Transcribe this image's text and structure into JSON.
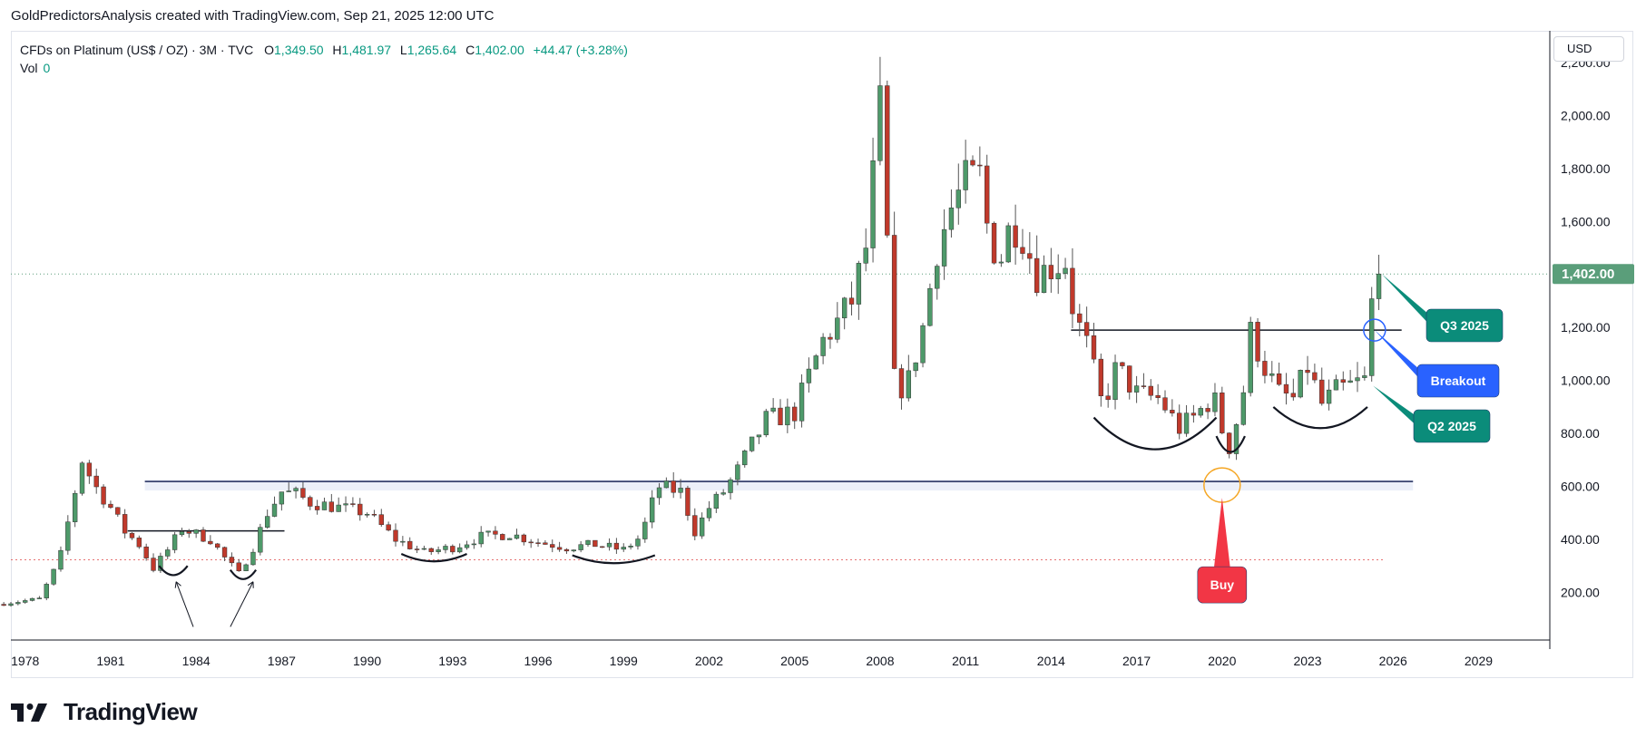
{
  "header": {
    "attribution": "GoldPredictorsAnalysis created with TradingView.com, Sep 21, 2025 12:00 UTC"
  },
  "legend": {
    "symbol": "CFDs on Platinum (US$ / OZ) · 3M · TVC",
    "open_label": "O",
    "open": "1,349.50",
    "high_label": "H",
    "high": "1,481.97",
    "low_label": "L",
    "low": "1,265.64",
    "close_label": "C",
    "close": "1,402.00",
    "change": "+44.47 (+3.28%)",
    "volume_label": "Vol",
    "volume": "0"
  },
  "currency": "USD",
  "price_badge": "1,402.00",
  "brand": {
    "name": "TradingView",
    "logo_icon": "tradingview-logo-icon"
  },
  "colors": {
    "up": "#4e9a6a",
    "down": "#c0392b",
    "grid": "#f0f3fa",
    "support": "#1e2a5a",
    "breakout_blue": "#2962ff",
    "buy_red": "#f23645",
    "teal": "#0b8c7a",
    "price_teal": "#5a9e7a"
  },
  "chart_data": {
    "type": "candlestick",
    "title": "CFDs on Platinum (US$ / OZ) · 3M · TVC",
    "ylim": [
      20,
      2320
    ],
    "y_ticks": [
      200,
      400,
      600,
      800,
      1000,
      1200,
      1400,
      1600,
      1800,
      2000,
      2200
    ],
    "y_tick_labels": [
      "200.00",
      "400.00",
      "600.00",
      "800.00",
      "1,000.00",
      "1,200.00",
      "1,400.00",
      "1,600.00",
      "1,800.00",
      "2,000.00",
      "2,200.00"
    ],
    "x_ticks": [
      1978,
      1981,
      1984,
      1987,
      1990,
      1993,
      1996,
      1999,
      2002,
      2005,
      2008,
      2011,
      2014,
      2017,
      2020,
      2023,
      2026,
      2029
    ],
    "xlim": [
      1977.5,
      2031.5
    ],
    "last_price": 1402,
    "anchors": [
      [
        1977.0,
        155
      ],
      [
        1978.5,
        175
      ],
      [
        1979.2,
        320
      ],
      [
        1980.0,
        700
      ],
      [
        1980.4,
        610
      ],
      [
        1981.0,
        520
      ],
      [
        1981.5,
        430
      ],
      [
        1982.0,
        380
      ],
      [
        1982.5,
        290
      ],
      [
        1983.0,
        360
      ],
      [
        1983.5,
        440
      ],
      [
        1984.0,
        420
      ],
      [
        1984.5,
        400
      ],
      [
        1985.0,
        330
      ],
      [
        1985.5,
        270
      ],
      [
        1986.0,
        370
      ],
      [
        1986.5,
        500
      ],
      [
        1987.0,
        580
      ],
      [
        1987.5,
        570
      ],
      [
        1988.0,
        540
      ],
      [
        1989.0,
        520
      ],
      [
        1990.0,
        500
      ],
      [
        1991.0,
        400
      ],
      [
        1992.0,
        350
      ],
      [
        1993.0,
        370
      ],
      [
        1994.0,
        410
      ],
      [
        1995.0,
        420
      ],
      [
        1996.0,
        390
      ],
      [
        1997.0,
        370
      ],
      [
        1998.0,
        380
      ],
      [
        1999.0,
        360
      ],
      [
        1999.6,
        410
      ],
      [
        2000.2,
        600
      ],
      [
        2001.0,
        580
      ],
      [
        2001.5,
        430
      ],
      [
        2002.0,
        520
      ],
      [
        2002.5,
        580
      ],
      [
        2003.0,
        660
      ],
      [
        2004.0,
        850
      ],
      [
        2005.0,
        880
      ],
      [
        2006.0,
        1150
      ],
      [
        2006.5,
        1220
      ],
      [
        2007.0,
        1300
      ],
      [
        2007.5,
        1500
      ],
      [
        2008.0,
        2030
      ],
      [
        2008.5,
        1000
      ],
      [
        2008.9,
        960
      ],
      [
        2009.5,
        1200
      ],
      [
        2010.0,
        1500
      ],
      [
        2010.5,
        1650
      ],
      [
        2011.0,
        1750
      ],
      [
        2011.5,
        1770
      ],
      [
        2011.8,
        1550
      ],
      [
        2012.2,
        1450
      ],
      [
        2012.6,
        1600
      ],
      [
        2013.0,
        1550
      ],
      [
        2013.5,
        1400
      ],
      [
        2014.0,
        1430
      ],
      [
        2014.5,
        1450
      ],
      [
        2014.8,
        1250
      ],
      [
        2015.3,
        1120
      ],
      [
        2015.8,
        900
      ],
      [
        2016.3,
        1050
      ],
      [
        2017.0,
        950
      ],
      [
        2017.8,
        930
      ],
      [
        2018.5,
        820
      ],
      [
        2019.0,
        860
      ],
      [
        2019.7,
        940
      ],
      [
        2020.2,
        730
      ],
      [
        2020.7,
        920
      ],
      [
        2021.0,
        1180
      ],
      [
        2021.5,
        1050
      ],
      [
        2022.0,
        950
      ],
      [
        2022.5,
        930
      ],
      [
        2023.0,
        1050
      ],
      [
        2023.5,
        910
      ],
      [
        2024.0,
        960
      ],
      [
        2024.5,
        980
      ],
      [
        2025.0,
        1000
      ],
      [
        2025.3,
        1350
      ],
      [
        2025.55,
        1402
      ]
    ],
    "lines": [
      {
        "name": "",
        "kind": "horizontal",
        "price": 605,
        "from": 1982.2,
        "to": 2026.7
      },
      {
        "name": "",
        "kind": "horizontal",
        "price": 1190,
        "from": 2014.7,
        "to": 2026.3
      },
      {
        "name": "",
        "kind": "horizontal",
        "price": 432,
        "from": 1981.6,
        "to": 1987.1
      },
      {
        "name": "",
        "kind": "horizontal-dotted",
        "price": 323,
        "from": 1977.5,
        "to": 2025.7
      }
    ],
    "arcs": [
      {
        "from": 1982.7,
        "to": 1983.7,
        "price": 300,
        "depth": 35
      },
      {
        "from": 1985.2,
        "to": 1986.1,
        "price": 285,
        "depth": 35
      },
      {
        "from": 1991.2,
        "to": 1993.5,
        "price": 345,
        "depth": 28
      },
      {
        "from": 1997.2,
        "to": 2000.1,
        "price": 340,
        "depth": 30
      },
      {
        "from": 2015.5,
        "to": 2019.8,
        "price": 860,
        "depth": 120
      },
      {
        "from": 2019.8,
        "to": 2020.8,
        "price": 790,
        "depth": 60
      },
      {
        "from": 2021.8,
        "to": 2025.1,
        "price": 900,
        "depth": 80
      }
    ],
    "annotations": [
      {
        "label": "Q3 2025",
        "price": 1402
      },
      {
        "label": "Breakout",
        "price": 1190
      },
      {
        "label": "Q2 2025",
        "price": 980
      },
      {
        "label": "Buy",
        "price": 605
      }
    ],
    "grid": false,
    "legend_position": "top-left"
  }
}
